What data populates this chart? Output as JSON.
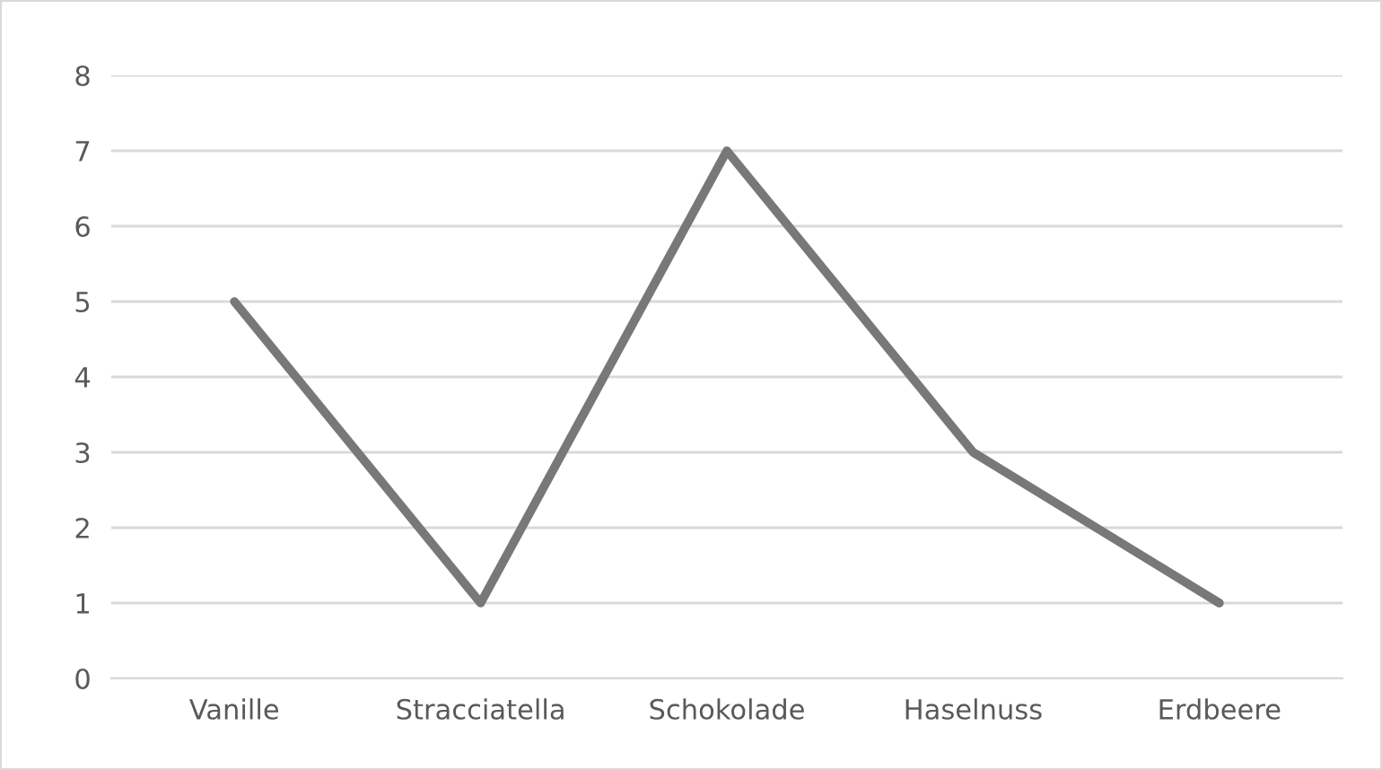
{
  "chart_data": {
    "type": "line",
    "categories": [
      "Vanille",
      "Stracciatella",
      "Schokolade",
      "Haselnuss",
      "Erdbeere"
    ],
    "series": [
      {
        "color": "#787878",
        "values": [
          5,
          1,
          7,
          3,
          1
        ]
      }
    ],
    "ylim": [
      0,
      8
    ],
    "yticks": [
      0,
      1,
      2,
      3,
      4,
      5,
      6,
      7,
      8
    ],
    "grid": "y",
    "marker": "none",
    "line_style": "solid"
  }
}
